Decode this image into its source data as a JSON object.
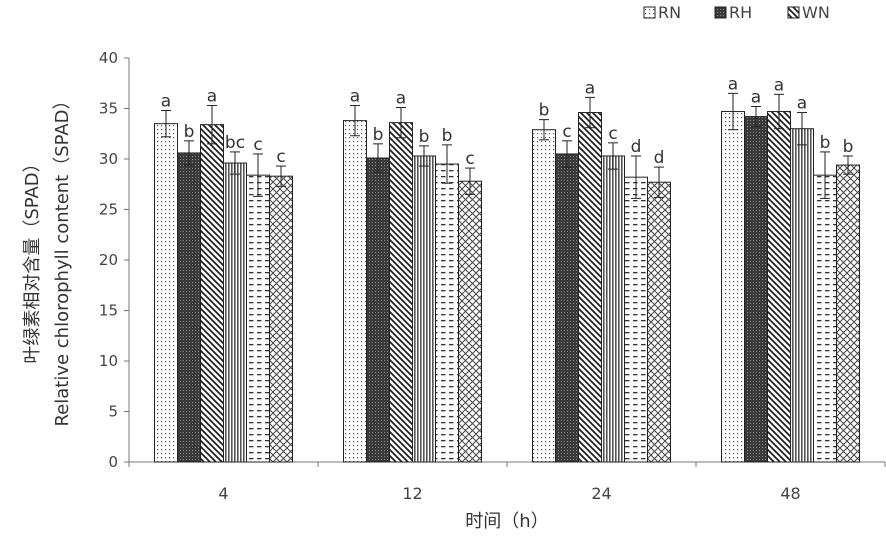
{
  "chart_data": {
    "type": "bar",
    "title": "",
    "xlabel": "时间（h）",
    "ylabel_line1": "叶绿素相对含量（SPAD）",
    "ylabel_line2": "Relative chlorophyll content（SPAD）",
    "categories": [
      "4",
      "12",
      "24",
      "48"
    ],
    "ylim": [
      0,
      40
    ],
    "yticks": [
      0,
      5,
      10,
      15,
      20,
      25,
      30,
      35,
      40
    ],
    "grid": false,
    "legend_position": "top-right",
    "legend": [
      "RN",
      "RH",
      "WN"
    ],
    "series": [
      {
        "name": "RN",
        "pattern": "dots",
        "values": [
          33.5,
          33.8,
          32.9,
          34.7
        ],
        "errors": [
          1.3,
          1.5,
          1.0,
          1.8
        ],
        "letters": [
          "a",
          "a",
          "b",
          "a"
        ]
      },
      {
        "name": "RH",
        "pattern": "dark-grid",
        "values": [
          30.6,
          30.1,
          30.5,
          34.2
        ],
        "errors": [
          1.2,
          1.4,
          1.3,
          1.0
        ],
        "letters": [
          "b",
          "b",
          "c",
          "a"
        ]
      },
      {
        "name": "WN",
        "pattern": "diag-down",
        "values": [
          33.4,
          33.6,
          34.6,
          34.7
        ],
        "errors": [
          1.9,
          1.5,
          1.5,
          1.7
        ],
        "letters": [
          "a",
          "a",
          "a",
          "a"
        ]
      },
      {
        "name": "",
        "pattern": "vertical",
        "values": [
          29.6,
          30.3,
          30.3,
          33.0
        ],
        "errors": [
          1.1,
          1.0,
          1.3,
          1.6
        ],
        "letters": [
          "bc",
          "b",
          "c",
          "a"
        ]
      },
      {
        "name": "",
        "pattern": "dashes",
        "values": [
          28.4,
          29.5,
          28.2,
          28.4
        ],
        "errors": [
          2.1,
          1.9,
          2.1,
          2.3
        ],
        "letters": [
          "c",
          "b",
          "d",
          "b"
        ]
      },
      {
        "name": "",
        "pattern": "crosshatch",
        "values": [
          28.3,
          27.8,
          27.7,
          29.4
        ],
        "errors": [
          1.0,
          1.3,
          1.5,
          0.9
        ],
        "letters": [
          "c",
          "c",
          "d",
          "b"
        ]
      }
    ]
  },
  "colors": {
    "text": "#444444",
    "axis": "#666666",
    "bar_outline": "#222222",
    "dark_fill": "#3a3a3a"
  }
}
